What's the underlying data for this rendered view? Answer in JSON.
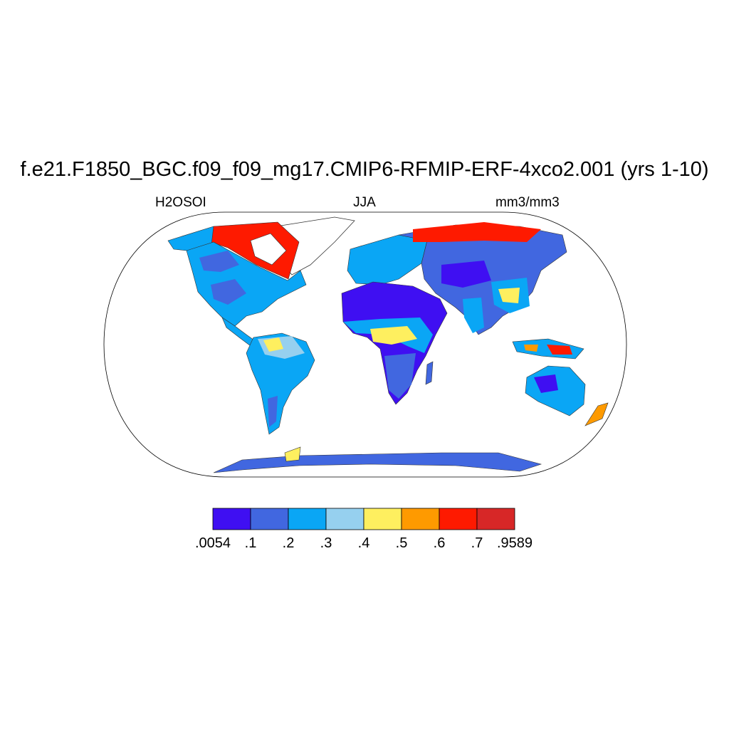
{
  "title": "f.e21.F1850_BGC.f09_f09_mg17.CMIP6-RFMIP-ERF-4xco2.001 (yrs 1-10)",
  "left_label": "H2OSOI",
  "center_label": "JJA",
  "right_label": "mm3/mm3",
  "colorbar": {
    "colors": [
      "#3f0ff2",
      "#4167e0",
      "#0aa6f5",
      "#96d0ef",
      "#feef5f",
      "#fe9a00",
      "#fe1a00",
      "#d72727"
    ],
    "labels": [
      ".0054",
      ".1",
      ".2",
      ".3",
      ".4",
      ".5",
      ".6",
      ".7",
      ".9589"
    ]
  },
  "map": {
    "projection": "Robinson",
    "ocean_color": "#ffffff",
    "region_values": [
      {
        "region": "Greenland",
        "value": 0.0
      },
      {
        "region": "Canadian Arctic",
        "value": 0.65
      },
      {
        "region": "North America",
        "value": 0.25
      },
      {
        "region": "Central America",
        "value": 0.3
      },
      {
        "region": "Amazon",
        "value": 0.4
      },
      {
        "region": "South America",
        "value": 0.25
      },
      {
        "region": "Sahara",
        "value": 0.05
      },
      {
        "region": "Sahel",
        "value": 0.25
      },
      {
        "region": "Central Africa",
        "value": 0.4
      },
      {
        "region": "Southern Africa",
        "value": 0.15
      },
      {
        "region": "Europe",
        "value": 0.22
      },
      {
        "region": "Siberia Arctic",
        "value": 0.65
      },
      {
        "region": "Central Asia",
        "value": 0.12
      },
      {
        "region": "South and East Asia",
        "value": 0.3
      },
      {
        "region": "Maritime Continent",
        "value": 0.5
      },
      {
        "region": "Australia",
        "value": 0.15
      },
      {
        "region": "Antarctica coast",
        "value": 0.15
      }
    ]
  }
}
